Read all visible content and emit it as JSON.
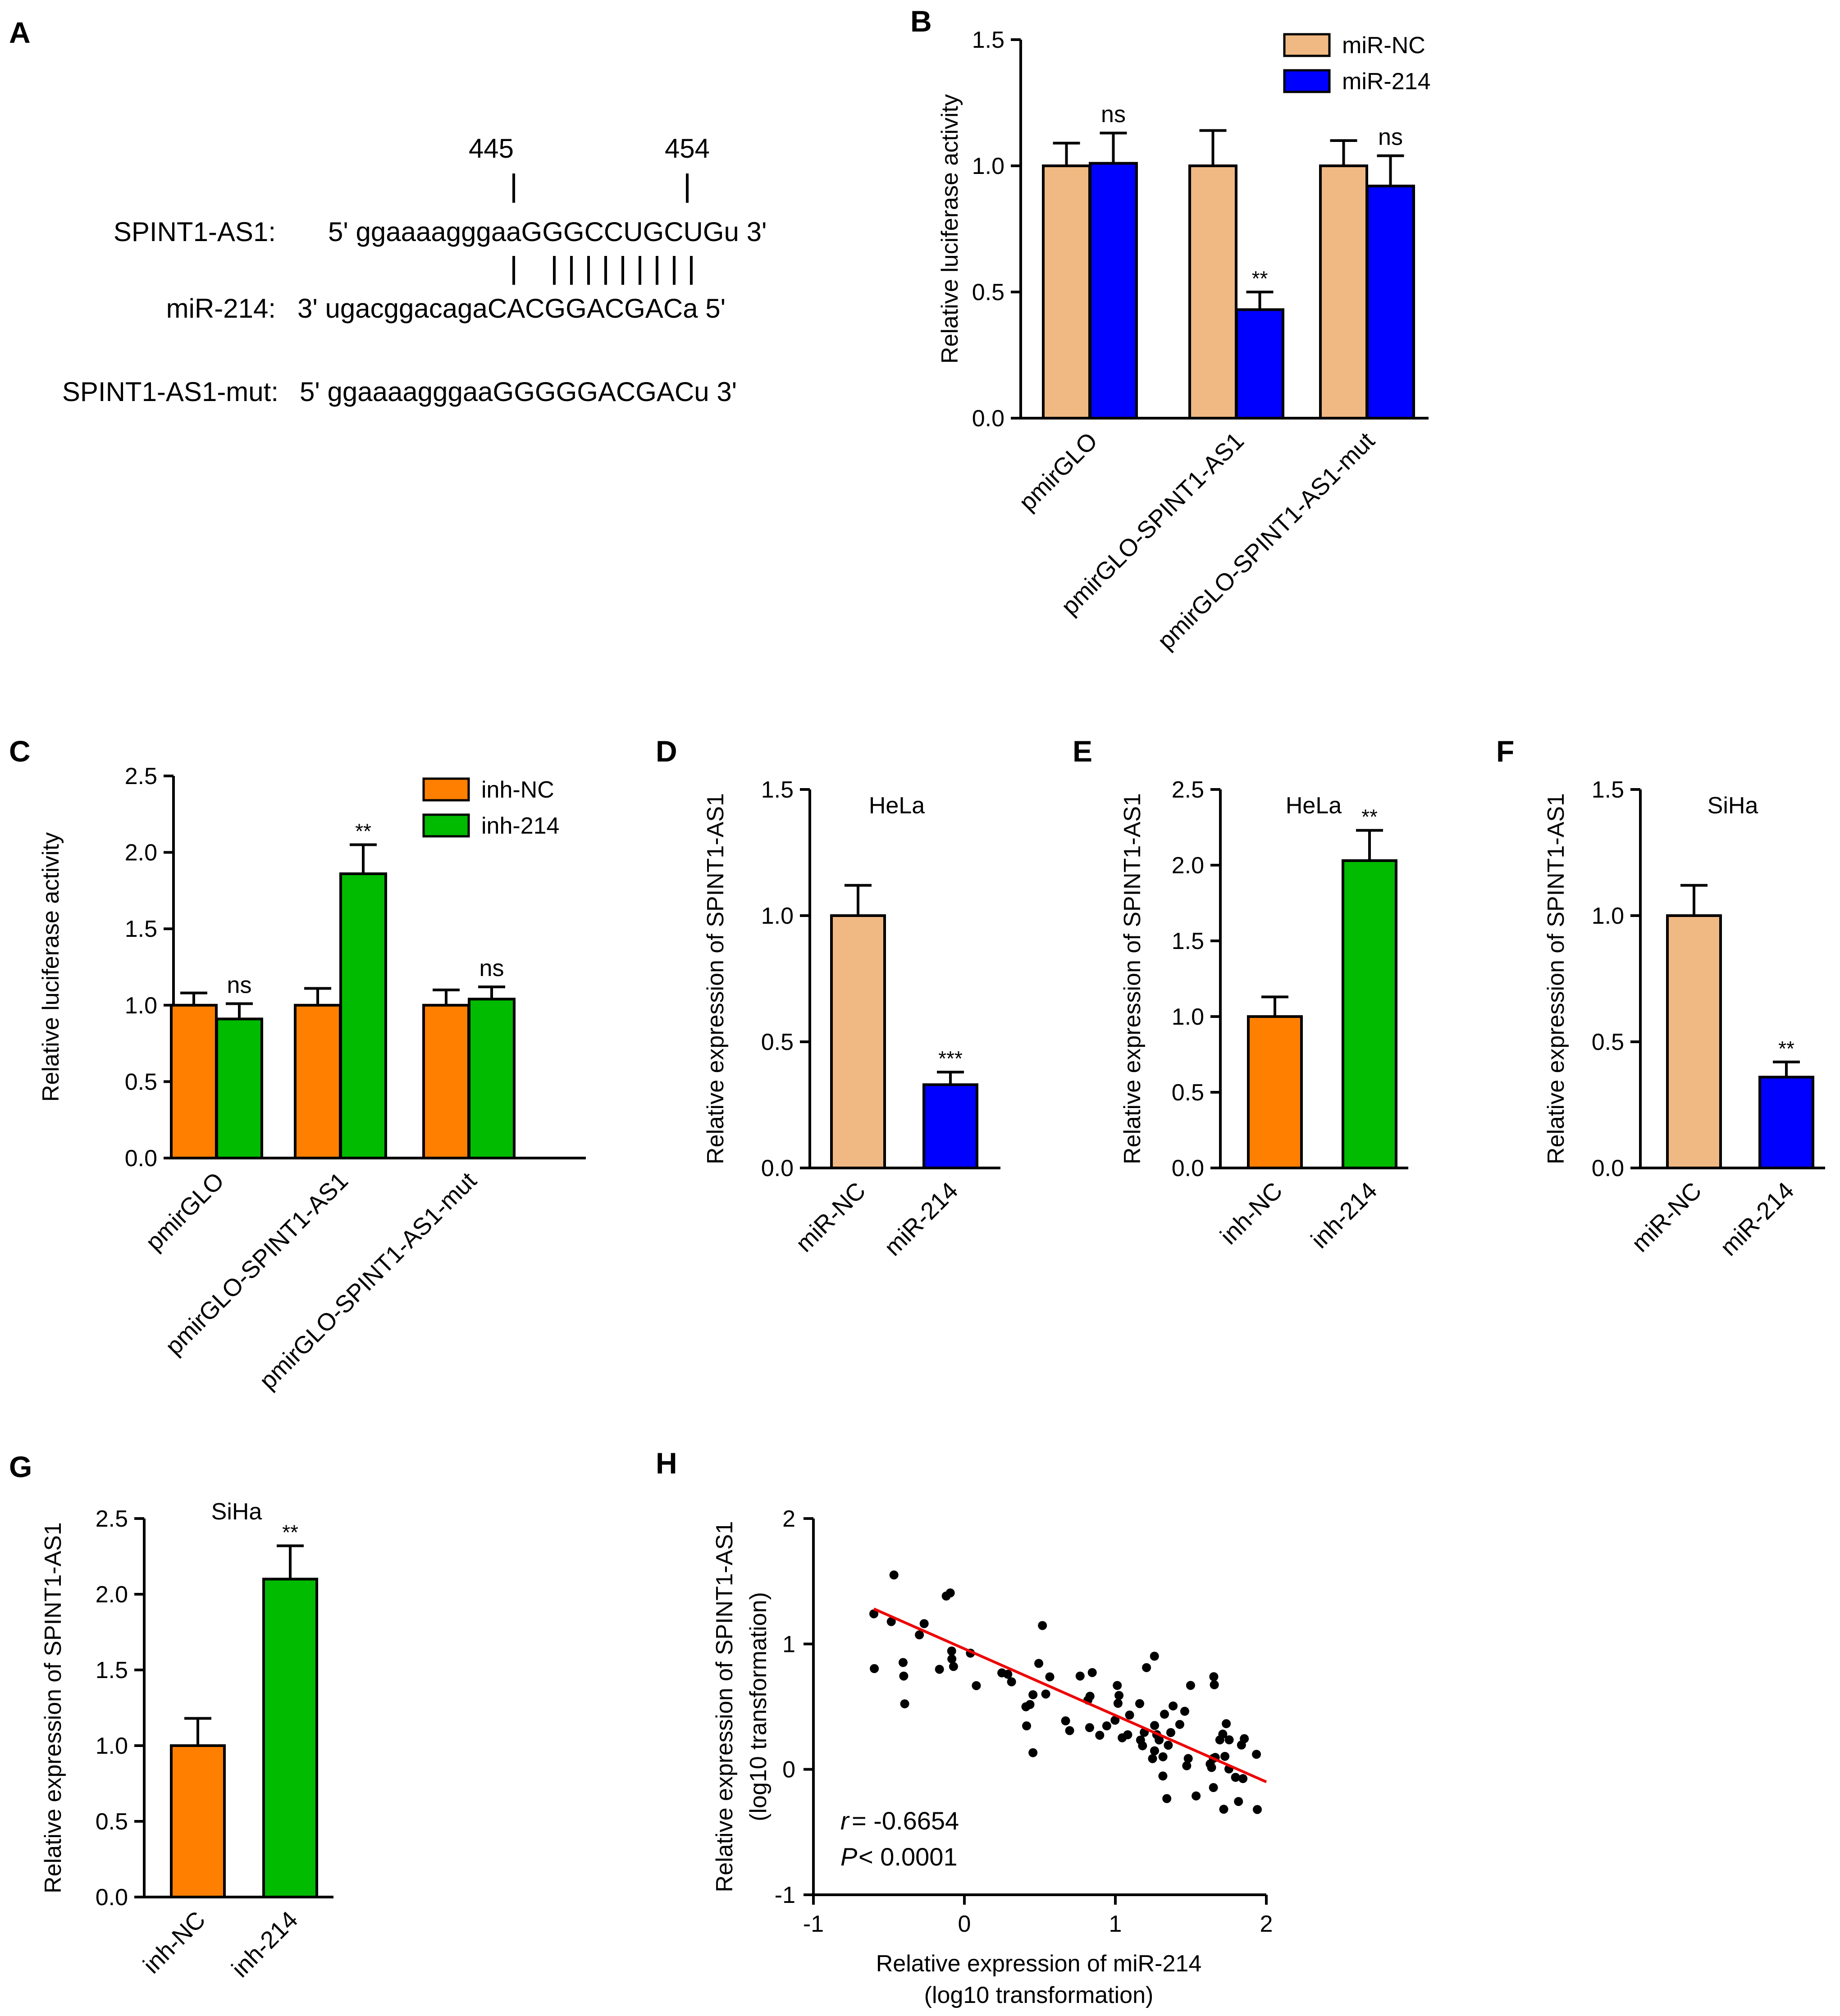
{
  "colors": {
    "miR_NC": "#f0b882",
    "miR_214": "#0000ff",
    "inh_NC": "#ff7f00",
    "inh_214": "#00bb00",
    "fit_line": "#ee0000",
    "dots": "#000000"
  },
  "panel_A": {
    "label": "A",
    "pos_left": "445",
    "pos_right": "454",
    "rows": [
      {
        "name": "SPINT1-AS1:",
        "seq": "5' ggaaaagggaaGGGCCUGCUGu 3'"
      },
      {
        "name": "miR-214:",
        "seq": "3'  ugacggacagaCACGGACGACa 5'"
      },
      {
        "name": "SPINT1-AS1-mut:",
        "seq": "5' ggaaaagggaaGGGGGACGACu 3'"
      }
    ]
  },
  "chart_data": {
    "B": {
      "label": "B",
      "type": "bar",
      "title": "",
      "ylabel": "Relative luciferase activity",
      "xlabel": "",
      "ylim": [
        0,
        1.5
      ],
      "yticks": [
        "0.0",
        "0.5",
        "1.0",
        "1.5"
      ],
      "categories": [
        "pmirGLO",
        "pmirGLO-SPINT1-AS1",
        "pmirGLO-SPINT1-AS1-mut"
      ],
      "legend": [
        "miR-NC",
        "miR-214"
      ],
      "legend_position": "top-right",
      "series": [
        {
          "name": "miR-NC",
          "color_key": "miR_NC",
          "values": [
            1.0,
            1.0,
            1.0
          ],
          "errors": [
            0.09,
            0.14,
            0.1
          ]
        },
        {
          "name": "miR-214",
          "color_key": "miR_214",
          "values": [
            1.01,
            0.43,
            0.92
          ],
          "errors": [
            0.12,
            0.07,
            0.12
          ]
        }
      ],
      "significance": [
        "ns",
        "**",
        "ns"
      ]
    },
    "C": {
      "label": "C",
      "type": "bar",
      "title": "",
      "ylabel": "Relative luciferase activity",
      "xlabel": "",
      "ylim": [
        0,
        2.5
      ],
      "yticks": [
        "0.0",
        "0.5",
        "1.0",
        "1.5",
        "2.0",
        "2.5"
      ],
      "categories": [
        "pmirGLO",
        "pmirGLO-SPINT1-AS1",
        "pmirGLO-SPINT1-AS1-mut"
      ],
      "legend": [
        "inh-NC",
        "inh-214"
      ],
      "legend_position": "top-right",
      "series": [
        {
          "name": "inh-NC",
          "color_key": "inh_NC",
          "values": [
            1.0,
            1.0,
            1.0
          ],
          "errors": [
            0.08,
            0.11,
            0.1
          ]
        },
        {
          "name": "inh-214",
          "color_key": "inh_214",
          "values": [
            0.91,
            1.86,
            1.04
          ],
          "errors": [
            0.1,
            0.19,
            0.08
          ]
        }
      ],
      "significance": [
        "ns",
        "**",
        "ns"
      ]
    },
    "D": {
      "label": "D",
      "type": "bar",
      "title": "HeLa",
      "ylabel": "Relative expression of SPINT1-AS1",
      "ylim": [
        0,
        1.5
      ],
      "yticks": [
        "0.0",
        "0.5",
        "1.0",
        "1.5"
      ],
      "categories": [
        "miR-NC",
        "miR-214"
      ],
      "values": [
        1.0,
        0.33
      ],
      "errors": [
        0.12,
        0.05
      ],
      "color_keys": [
        "miR_NC",
        "miR_214"
      ],
      "significance": "***"
    },
    "E": {
      "label": "E",
      "type": "bar",
      "title": "HeLa",
      "ylabel": "Relative expression of SPINT1-AS1",
      "ylim": [
        0,
        2.5
      ],
      "yticks": [
        "0.0",
        "0.5",
        "1.0",
        "1.5",
        "2.0",
        "2.5"
      ],
      "categories": [
        "inh-NC",
        "inh-214"
      ],
      "values": [
        1.0,
        2.03
      ],
      "errors": [
        0.13,
        0.2
      ],
      "color_keys": [
        "inh_NC",
        "inh_214"
      ],
      "significance": "**"
    },
    "F": {
      "label": "F",
      "type": "bar",
      "title": "SiHa",
      "ylabel": "Relative expression of SPINT1-AS1",
      "ylim": [
        0,
        1.5
      ],
      "yticks": [
        "0.0",
        "0.5",
        "1.0",
        "1.5"
      ],
      "categories": [
        "miR-NC",
        "miR-214"
      ],
      "values": [
        1.0,
        0.36
      ],
      "errors": [
        0.12,
        0.06
      ],
      "color_keys": [
        "miR_NC",
        "miR_214"
      ],
      "significance": "**"
    },
    "G": {
      "label": "G",
      "type": "bar",
      "title": "SiHa",
      "ylabel": "Relative expression of SPINT1-AS1",
      "ylim": [
        0,
        2.5
      ],
      "yticks": [
        "0.0",
        "0.5",
        "1.0",
        "1.5",
        "2.0",
        "2.5"
      ],
      "categories": [
        "inh-NC",
        "inh-214"
      ],
      "values": [
        1.0,
        2.1
      ],
      "errors": [
        0.18,
        0.22
      ],
      "color_keys": [
        "inh_NC",
        "inh_214"
      ],
      "significance": "**"
    },
    "H": {
      "label": "H",
      "type": "scatter",
      "xlabel": [
        "Relative expression of miR-214",
        "(log10 transformation)"
      ],
      "ylabel": [
        "Relative expression of SPINT1-AS1",
        "(log10 transformation)"
      ],
      "xlim": [
        -1,
        2
      ],
      "ylim": [
        -1,
        2
      ],
      "xticks": [
        "-1",
        "0",
        "1",
        "2"
      ],
      "yticks": [
        "-1",
        "0",
        "1",
        "2"
      ],
      "fit": {
        "x": [
          -0.6,
          2.0
        ],
        "y": [
          1.28,
          -0.1
        ]
      },
      "r_label": "r",
      "r_value": " = -0.6654",
      "p_label": "P",
      "p_value": " < 0.0001",
      "points": [],
      "n_points": 90
    }
  }
}
